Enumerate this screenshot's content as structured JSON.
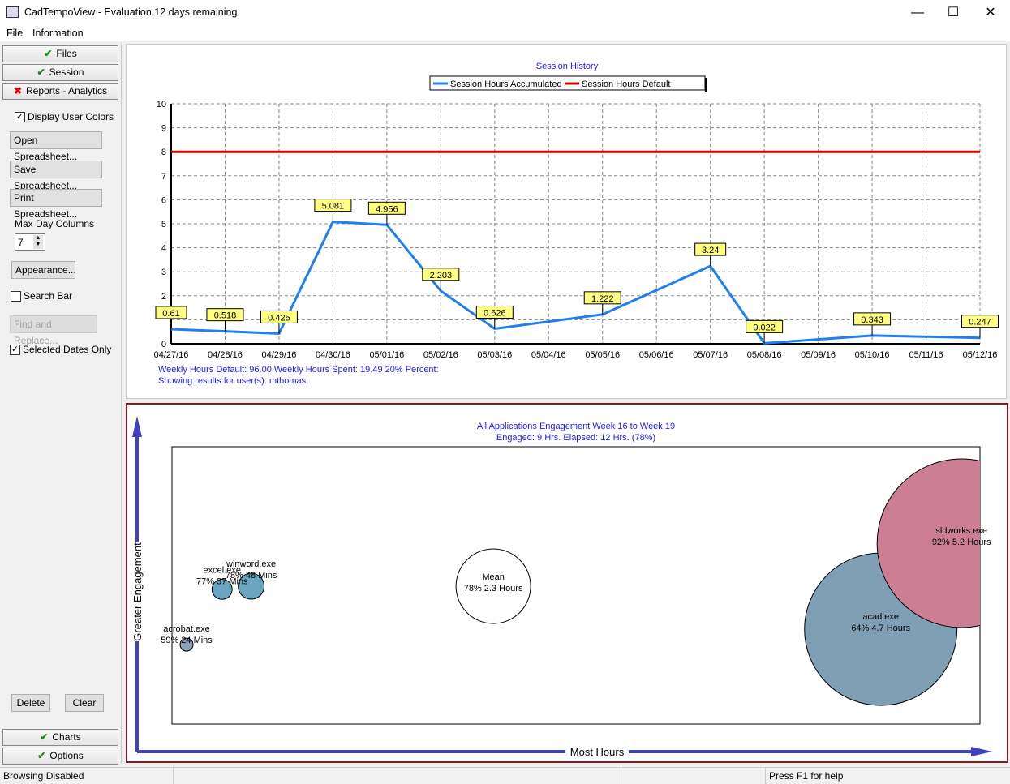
{
  "window": {
    "title": "CadTempoView - Evaluation 12 days remaining",
    "minimize": "—",
    "maximize": "☐",
    "close": "✕"
  },
  "menu": {
    "file": "File",
    "information": "Information"
  },
  "sidebar": {
    "tabs": {
      "files": "Files",
      "session": "Session",
      "reports": "Reports - Analytics",
      "charts": "Charts",
      "options": "Options"
    },
    "display_user_colors": {
      "label": "Display User Colors",
      "checked": true
    },
    "open_spreadsheet": "Open Spreadsheet...",
    "save_spreadsheet": "Save Spreadsheet...",
    "print_spreadsheet": "Print Spreadsheet...",
    "max_day_columns_label": "Max Day Columns",
    "max_day_columns_value": "7",
    "appearance": "Appearance...",
    "search_bar": {
      "label": "Search Bar",
      "checked": false
    },
    "find_replace": "Find and Replace...",
    "selected_dates_only": {
      "label": "Selected Dates Only",
      "checked": true
    },
    "delete": "Delete",
    "clear": "Clear"
  },
  "status": {
    "left": "Browsing Disabled",
    "right": "Press F1 for help"
  },
  "chart_data": [
    {
      "type": "line",
      "title": "Session History",
      "legend": [
        "Session Hours Accumulated",
        "Session Hours Default"
      ],
      "legend_placement": "top-center",
      "categories": [
        "04/27/16",
        "04/28/16",
        "04/29/16",
        "04/30/16",
        "05/01/16",
        "05/02/16",
        "05/03/16",
        "05/04/16",
        "05/05/16",
        "05/06/16",
        "05/07/16",
        "05/08/16",
        "05/09/16",
        "05/10/16",
        "05/11/16",
        "05/12/16"
      ],
      "series": [
        {
          "name": "Session Hours Accumulated",
          "color": "#1e7ff0",
          "values": [
            0.61,
            0.518,
            0.425,
            5.081,
            4.956,
            2.203,
            0.626,
            null,
            1.222,
            null,
            3.24,
            0.022,
            null,
            0.343,
            null,
            0.247
          ],
          "labels": [
            "0.61",
            "0.518",
            "0.425",
            "5.081",
            "4.956",
            "2.203",
            "0.626",
            null,
            "1.222",
            null,
            "3.24",
            "0.022",
            null,
            "0.343",
            null,
            "0.247"
          ]
        },
        {
          "name": "Session Hours Default",
          "color": "#e00000",
          "constant": 8
        }
      ],
      "ylim": [
        0,
        10
      ],
      "yticks": [
        "0",
        "2",
        "3",
        "4",
        "5",
        "6",
        "7",
        "8",
        "9",
        "10"
      ],
      "grid": true,
      "footer": [
        "Weekly Hours Default: 96.00 Weekly Hours Spent: 19.49 20% Percent:",
        "Showing results for user(s): mthomas,"
      ]
    },
    {
      "type": "scatter",
      "title": "All Applications Engagement Week 16 to Week 19",
      "subtitle": "Engaged: 9 Hrs. Elapsed: 12 Hrs. (78%)",
      "xlabel": "Most Hours",
      "ylabel": "Greater Engagement",
      "bubbles": [
        {
          "name": "acrobat.exe",
          "detail": "59% 24 Mins",
          "engagement": 59,
          "hours": 0.4,
          "color": "#8aa0b8"
        },
        {
          "name": "excel.exe",
          "detail": "77% 37 Mins",
          "engagement": 77,
          "hours": 0.62,
          "color": "#6aa6c0"
        },
        {
          "name": "winword.exe",
          "detail": "78% 48 Mins",
          "engagement": 78,
          "hours": 0.8,
          "color": "#6aa6c0"
        },
        {
          "name": "Mean",
          "detail": "78% 2.3 Hours",
          "engagement": 78,
          "hours": 2.3,
          "color": "#ffffff"
        },
        {
          "name": "acad.exe",
          "detail": "64% 4.7 Hours",
          "engagement": 64,
          "hours": 4.7,
          "color": "#7f9fb5"
        },
        {
          "name": "sldworks.exe",
          "detail": "92% 5.2 Hours",
          "engagement": 92,
          "hours": 5.2,
          "color": "#cc7f94"
        }
      ]
    }
  ]
}
